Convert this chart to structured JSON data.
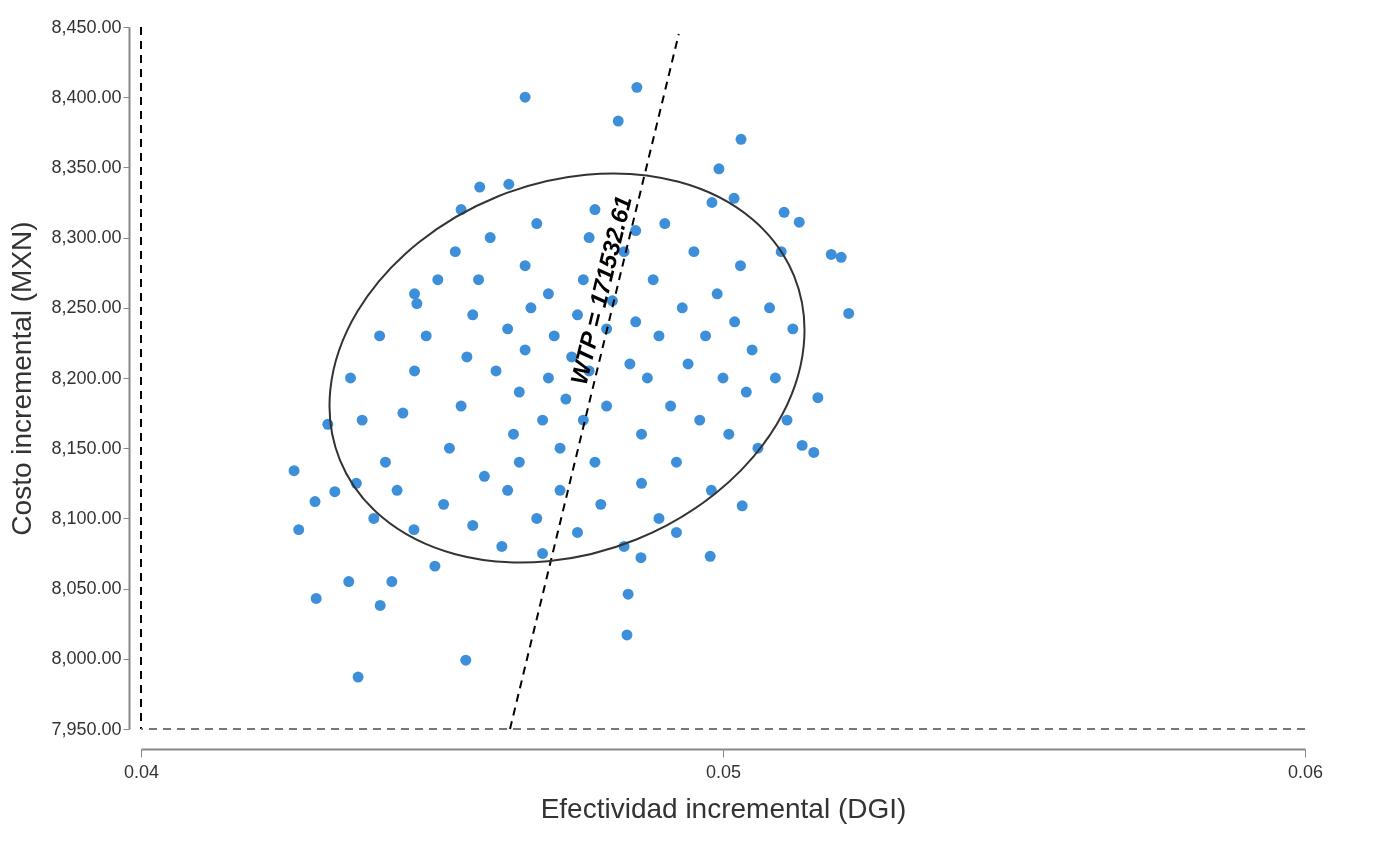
{
  "chart_data": {
    "type": "scatter",
    "xlabel": "Efectividad incremental (DGI)",
    "ylabel": "Costo incremental (MXN)",
    "xlim": [
      0.04,
      0.06
    ],
    "xticks": [
      0.04,
      0.05,
      0.06
    ],
    "ylim": [
      7950,
      8450
    ],
    "yticks": [
      {
        "value": 7950,
        "label": "7,950.00"
      },
      {
        "value": 8000,
        "label": "8,000.00"
      },
      {
        "value": 8050,
        "label": "8,050.00"
      },
      {
        "value": 8100,
        "label": "8,100.00"
      },
      {
        "value": 8150,
        "label": "8,150.00"
      },
      {
        "value": 8200,
        "label": "8,200.00"
      },
      {
        "value": 8250,
        "label": "8,250.00"
      },
      {
        "value": 8300,
        "label": "8,300.00"
      },
      {
        "value": 8350,
        "label": "8,350.00"
      },
      {
        "value": 8400,
        "label": "8,400.00"
      },
      {
        "value": 8450,
        "label": "8,450.00"
      }
    ],
    "marker": "circle",
    "series": [
      {
        "color": "#3d8fd9",
        "x": [
          0.04263,
          0.04271,
          0.04301,
          0.04299,
          0.04321,
          0.04333,
          0.04357,
          0.04373,
          0.04411,
          0.04431,
          0.04558,
          0.0466,
          0.04852,
          0.0482,
          0.05031,
          0.04993,
          0.04981,
          0.05019,
          0.05105,
          0.05131,
          0.05186,
          0.05203,
          0.05216,
          0.05163,
          0.05136,
          0.05156,
          0.05033,
          0.04978,
          0.04837,
          0.04835,
          0.04859,
          0.04632,
          0.04582,
          0.04474,
          0.04505,
          0.04469,
          0.044,
          0.0442,
          0.0445,
          0.0447,
          0.0449,
          0.0444,
          0.0438,
          0.0437,
          0.0436,
          0.0441,
          0.0452,
          0.0453,
          0.0455,
          0.0456,
          0.0457,
          0.0458,
          0.0454,
          0.046,
          0.0459,
          0.0457,
          0.0462,
          0.0463,
          0.0464,
          0.0465,
          0.0466,
          0.0467,
          0.0466,
          0.0468,
          0.0463,
          0.0465,
          0.0468,
          0.0469,
          0.047,
          0.0471,
          0.047,
          0.0472,
          0.0473,
          0.0474,
          0.0472,
          0.0469,
          0.0475,
          0.0476,
          0.0477,
          0.0476,
          0.0478,
          0.0479,
          0.0477,
          0.048,
          0.0481,
          0.048,
          0.0483,
          0.0484,
          0.0485,
          0.0486,
          0.0486,
          0.0487,
          0.0488,
          0.0489,
          0.049,
          0.0491,
          0.0492,
          0.0493,
          0.0494,
          0.0495,
          0.0496,
          0.0497,
          0.0498,
          0.0499,
          0.05,
          0.0501,
          0.0502,
          0.0503,
          0.0504,
          0.0505,
          0.0506,
          0.0508,
          0.0509,
          0.051,
          0.0511,
          0.0512,
          0.0489,
          0.0492,
          0.0483,
          0.0475,
          0.0447,
          0.0451,
          0.0455,
          0.0478,
          0.0485,
          0.0461
        ],
        "values": [
          8134,
          8092,
          8043,
          8112,
          8167,
          8119,
          8055,
          7987,
          8038,
          8055,
          7999,
          8400,
          8407,
          8383,
          8370,
          8349,
          8325,
          8328,
          8318,
          8311,
          8288,
          8286,
          8246,
          8186,
          8152,
          8147,
          8109,
          8073,
          8046,
          8017,
          8072,
          8338,
          8336,
          8253,
          8066,
          8092,
          8100,
          8140,
          8175,
          8205,
          8230,
          8120,
          8170,
          8125,
          8200,
          8230,
          8110,
          8150,
          8180,
          8215,
          8245,
          8270,
          8290,
          8300,
          8130,
          8095,
          8080,
          8120,
          8160,
          8190,
          8220,
          8250,
          8280,
          8310,
          8235,
          8140,
          8100,
          8170,
          8200,
          8230,
          8260,
          8150,
          8185,
          8215,
          8120,
          8075,
          8245,
          8270,
          8300,
          8170,
          8140,
          8110,
          8205,
          8235,
          8255,
          8180,
          8290,
          8210,
          8240,
          8160,
          8125,
          8200,
          8270,
          8230,
          8310,
          8180,
          8140,
          8250,
          8210,
          8290,
          8170,
          8230,
          8120,
          8260,
          8200,
          8160,
          8240,
          8280,
          8190,
          8220,
          8150,
          8250,
          8200,
          8290,
          8170,
          8235,
          8100,
          8090,
          8080,
          8090,
          8260,
          8270,
          8320,
          8320,
          8305,
          8205
        ]
      },
      {
        "type": "line",
        "marker": "none",
        "color": "#000000",
        "line_style": "dashed",
        "x": [
          0.04634,
          0.04924
        ],
        "values": [
          7950,
          8445
        ]
      }
    ],
    "ref_lines": [
      {
        "axis": "x",
        "value": 0.04,
        "color": "#000000",
        "line_style": "dashed"
      },
      {
        "axis": "y",
        "value": 7950,
        "color": "#777777",
        "line_style": "dashed"
      }
    ],
    "annotations": [
      {
        "text": "WTP = 171532.61",
        "x": 0.04816,
        "y": 8260
      }
    ]
  }
}
